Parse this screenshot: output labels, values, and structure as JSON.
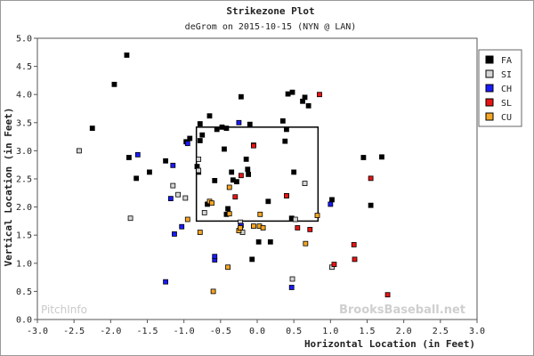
{
  "chart_data": {
    "type": "scatter",
    "title": "Strikezone Plot",
    "subtitle": "deGrom on 2015-10-15 (NYN @ LAN)",
    "xlabel": "Horizontal Location (in Feet)",
    "ylabel": "Vertical Location (in Feet)",
    "xlim": [
      -3.0,
      3.0
    ],
    "ylim": [
      0.0,
      5.0
    ],
    "x_ticks": [
      "-3.0",
      "-2.5",
      "-2.0",
      "-1.5",
      "-1.0",
      "-0.5",
      "0.0",
      "0.5",
      "1.0",
      "1.5",
      "2.0",
      "2.5",
      "3.0"
    ],
    "y_ticks": [
      "0.0",
      "0.5",
      "1.0",
      "1.5",
      "2.0",
      "2.5",
      "3.0",
      "3.5",
      "4.0",
      "4.5",
      "5.0"
    ],
    "legend_position": "top-right",
    "strike_zone": {
      "x": [
        -0.83,
        0.83
      ],
      "y": [
        1.75,
        3.42
      ]
    },
    "watermark_left": "PitchInfo",
    "watermark_right": "BrooksBaseball.net",
    "series": [
      {
        "name": "FA",
        "color": "#000000",
        "points": [
          [
            -1.78,
            4.7
          ],
          [
            -1.95,
            4.18
          ],
          [
            -2.25,
            3.4
          ],
          [
            -0.65,
            3.62
          ],
          [
            -0.78,
            3.48
          ],
          [
            -0.92,
            3.22
          ],
          [
            -0.75,
            3.28
          ],
          [
            -0.78,
            3.18
          ],
          [
            -0.97,
            3.16
          ],
          [
            -0.55,
            3.38
          ],
          [
            -0.48,
            3.42
          ],
          [
            -0.42,
            3.4
          ],
          [
            -0.22,
            3.96
          ],
          [
            -0.1,
            3.47
          ],
          [
            0.35,
            3.53
          ],
          [
            0.4,
            3.38
          ],
          [
            0.38,
            3.17
          ],
          [
            0.42,
            4.01
          ],
          [
            0.48,
            4.04
          ],
          [
            0.62,
            3.88
          ],
          [
            0.65,
            3.95
          ],
          [
            0.7,
            3.8
          ],
          [
            -0.05,
            3.1
          ],
          [
            -0.45,
            3.03
          ],
          [
            -0.15,
            2.85
          ],
          [
            -0.13,
            2.67
          ],
          [
            -0.12,
            2.58
          ],
          [
            -0.58,
            2.47
          ],
          [
            -0.35,
            2.62
          ],
          [
            -0.8,
            2.62
          ],
          [
            -0.82,
            2.72
          ],
          [
            -0.28,
            2.45
          ],
          [
            -0.33,
            2.48
          ],
          [
            -1.75,
            2.88
          ],
          [
            -1.65,
            2.51
          ],
          [
            -1.47,
            2.62
          ],
          [
            -1.25,
            2.82
          ],
          [
            0.15,
            2.1
          ],
          [
            0.4,
            2.2
          ],
          [
            0.5,
            2.62
          ],
          [
            -0.68,
            2.05
          ],
          [
            -0.4,
            1.97
          ],
          [
            -0.42,
            1.87
          ],
          [
            0.47,
            1.8
          ],
          [
            1.02,
            2.13
          ],
          [
            1.45,
            2.88
          ],
          [
            1.7,
            2.89
          ],
          [
            1.55,
            2.03
          ],
          [
            0.02,
            1.38
          ],
          [
            0.18,
            1.38
          ],
          [
            -0.07,
            1.07
          ]
        ]
      },
      {
        "name": "SI",
        "color": "#d6d6d6",
        "points": [
          [
            -2.43,
            3.0
          ],
          [
            -1.15,
            2.38
          ],
          [
            -1.08,
            2.22
          ],
          [
            -0.98,
            2.16
          ],
          [
            -1.73,
            1.8
          ],
          [
            -0.8,
            2.85
          ],
          [
            -0.8,
            2.65
          ],
          [
            -0.72,
            1.9
          ],
          [
            -0.23,
            1.73
          ],
          [
            -0.2,
            1.55
          ],
          [
            0.65,
            2.42
          ],
          [
            0.52,
            1.78
          ],
          [
            0.48,
            0.72
          ],
          [
            1.02,
            0.93
          ]
        ]
      },
      {
        "name": "CH",
        "color": "#1a1aff",
        "points": [
          [
            -1.63,
            2.93
          ],
          [
            -0.95,
            3.13
          ],
          [
            -0.25,
            3.5
          ],
          [
            -1.15,
            2.74
          ],
          [
            -1.18,
            2.15
          ],
          [
            -1.13,
            1.52
          ],
          [
            -1.03,
            1.65
          ],
          [
            -0.22,
            1.67
          ],
          [
            -0.58,
            1.06
          ],
          [
            -0.58,
            1.12
          ],
          [
            -1.25,
            0.67
          ],
          [
            0.47,
            0.57
          ],
          [
            1.0,
            2.05
          ]
        ]
      },
      {
        "name": "SL",
        "color": "#e81414",
        "points": [
          [
            0.85,
            4.0
          ],
          [
            -0.05,
            3.09
          ],
          [
            -0.22,
            2.56
          ],
          [
            0.4,
            2.2
          ],
          [
            -0.3,
            2.18
          ],
          [
            0.55,
            1.63
          ],
          [
            0.72,
            1.6
          ],
          [
            1.55,
            2.51
          ],
          [
            1.32,
            1.33
          ],
          [
            1.33,
            1.07
          ],
          [
            1.05,
            0.98
          ],
          [
            1.78,
            0.44
          ]
        ]
      },
      {
        "name": "CU",
        "color": "#f5a623",
        "points": [
          [
            -0.78,
            1.55
          ],
          [
            -0.95,
            1.78
          ],
          [
            -0.65,
            2.1
          ],
          [
            -0.38,
            2.35
          ],
          [
            -0.38,
            1.88
          ],
          [
            -0.25,
            1.58
          ],
          [
            -0.23,
            1.63
          ],
          [
            -0.05,
            1.66
          ],
          [
            0.03,
            1.66
          ],
          [
            0.08,
            1.63
          ],
          [
            0.04,
            1.87
          ],
          [
            0.66,
            1.35
          ],
          [
            0.82,
            1.85
          ],
          [
            -0.4,
            0.93
          ],
          [
            -0.6,
            0.5
          ],
          [
            -0.62,
            2.07
          ]
        ]
      }
    ]
  }
}
